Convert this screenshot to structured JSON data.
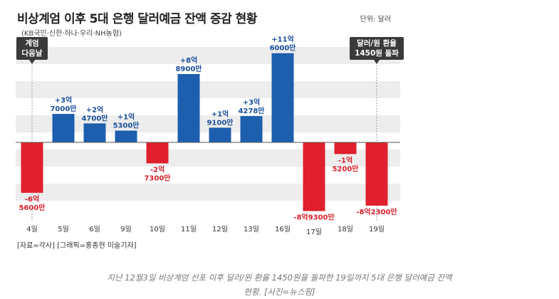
{
  "header": {
    "title": "비상계엄 이후 5대 은행 달러예금 잔액 증감 현황",
    "subtitle": "(KB국민·신한·하나·우리·NH농협)",
    "unit": "단위: 달러"
  },
  "annotations": {
    "left": [
      "계엄",
      "다음날"
    ],
    "right": [
      "달러/원 환율",
      "1450원 돌파"
    ]
  },
  "source": "[자료=각사] [그래픽=홍종현 미술기자]",
  "caption": {
    "line1": "지난 12월3일 비상계엄 선포 이후 달러/원 환율 1450원을 돌파한 19일까지 5대 은행 달러예금 잔액",
    "line2": "현황. [사진=뉴스핌]"
  },
  "colors": {
    "positive": "#1d5fae",
    "negative": "#e0202e",
    "posText": "#1a4f9c",
    "negText": "#d9202c"
  },
  "chart_data": {
    "type": "bar",
    "categories": [
      "4일",
      "5일",
      "6일",
      "9일",
      "10일",
      "11일",
      "12일",
      "13일",
      "16일",
      "17일",
      "18일",
      "19일"
    ],
    "values": [
      -656000000,
      370000000,
      247000000,
      153000000,
      -273000000,
      889000000,
      191000000,
      342780000,
      1160000000,
      -893000000,
      -152000000,
      -823000000
    ],
    "labels": [
      [
        "-6억",
        "5600만"
      ],
      [
        "+3억",
        "7000만"
      ],
      [
        "+2억",
        "4700만"
      ],
      [
        "+1억",
        "5300만"
      ],
      [
        "-2억",
        "7300만"
      ],
      [
        "+8억",
        "8900만"
      ],
      [
        "+1억",
        "9100만"
      ],
      [
        "+3억",
        "4278만"
      ],
      [
        "+11억",
        "6000만"
      ],
      [
        "-8억9300만"
      ],
      [
        "-1억",
        "5200만"
      ],
      [
        "-8억2300만"
      ]
    ],
    "ylim": [
      -1000000000,
      1250000000
    ]
  }
}
